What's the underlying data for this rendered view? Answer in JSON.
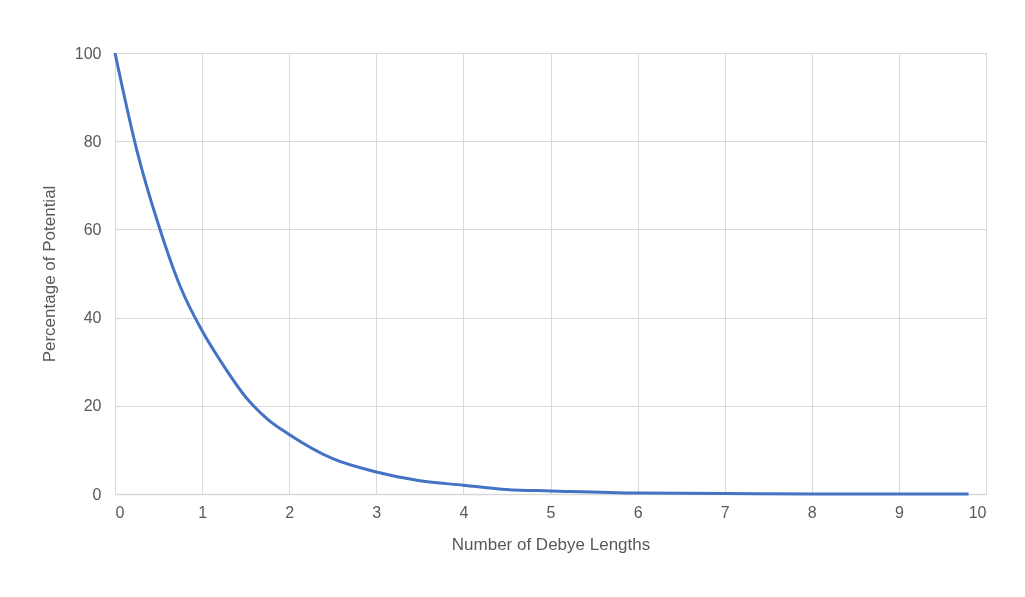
{
  "chart_data": {
    "type": "line",
    "xlabel": "Number of Debye Lengths",
    "ylabel": "Percentage of Potential",
    "x": [
      0,
      0.25,
      0.5,
      0.75,
      1,
      1.25,
      1.5,
      1.75,
      2,
      2.5,
      3,
      3.5,
      4,
      4.5,
      5,
      6,
      7,
      8,
      9,
      9.8
    ],
    "series": [
      {
        "color": "#4472c4",
        "values": [
          100,
          78,
          61,
          47,
          37,
          29,
          22,
          17,
          13.5,
          8,
          5,
          3,
          2,
          1,
          0.7,
          0.2,
          0.1,
          0,
          0,
          0
        ]
      }
    ],
    "xlim": [
      0,
      10
    ],
    "xticks": [
      0,
      1,
      2,
      3,
      4,
      5,
      6,
      7,
      8,
      9,
      10
    ],
    "ylim": [
      0,
      100
    ],
    "yticks": [
      0,
      20,
      40,
      60,
      80,
      100
    ],
    "grid": true,
    "marker": "none",
    "line_style": "solid"
  }
}
